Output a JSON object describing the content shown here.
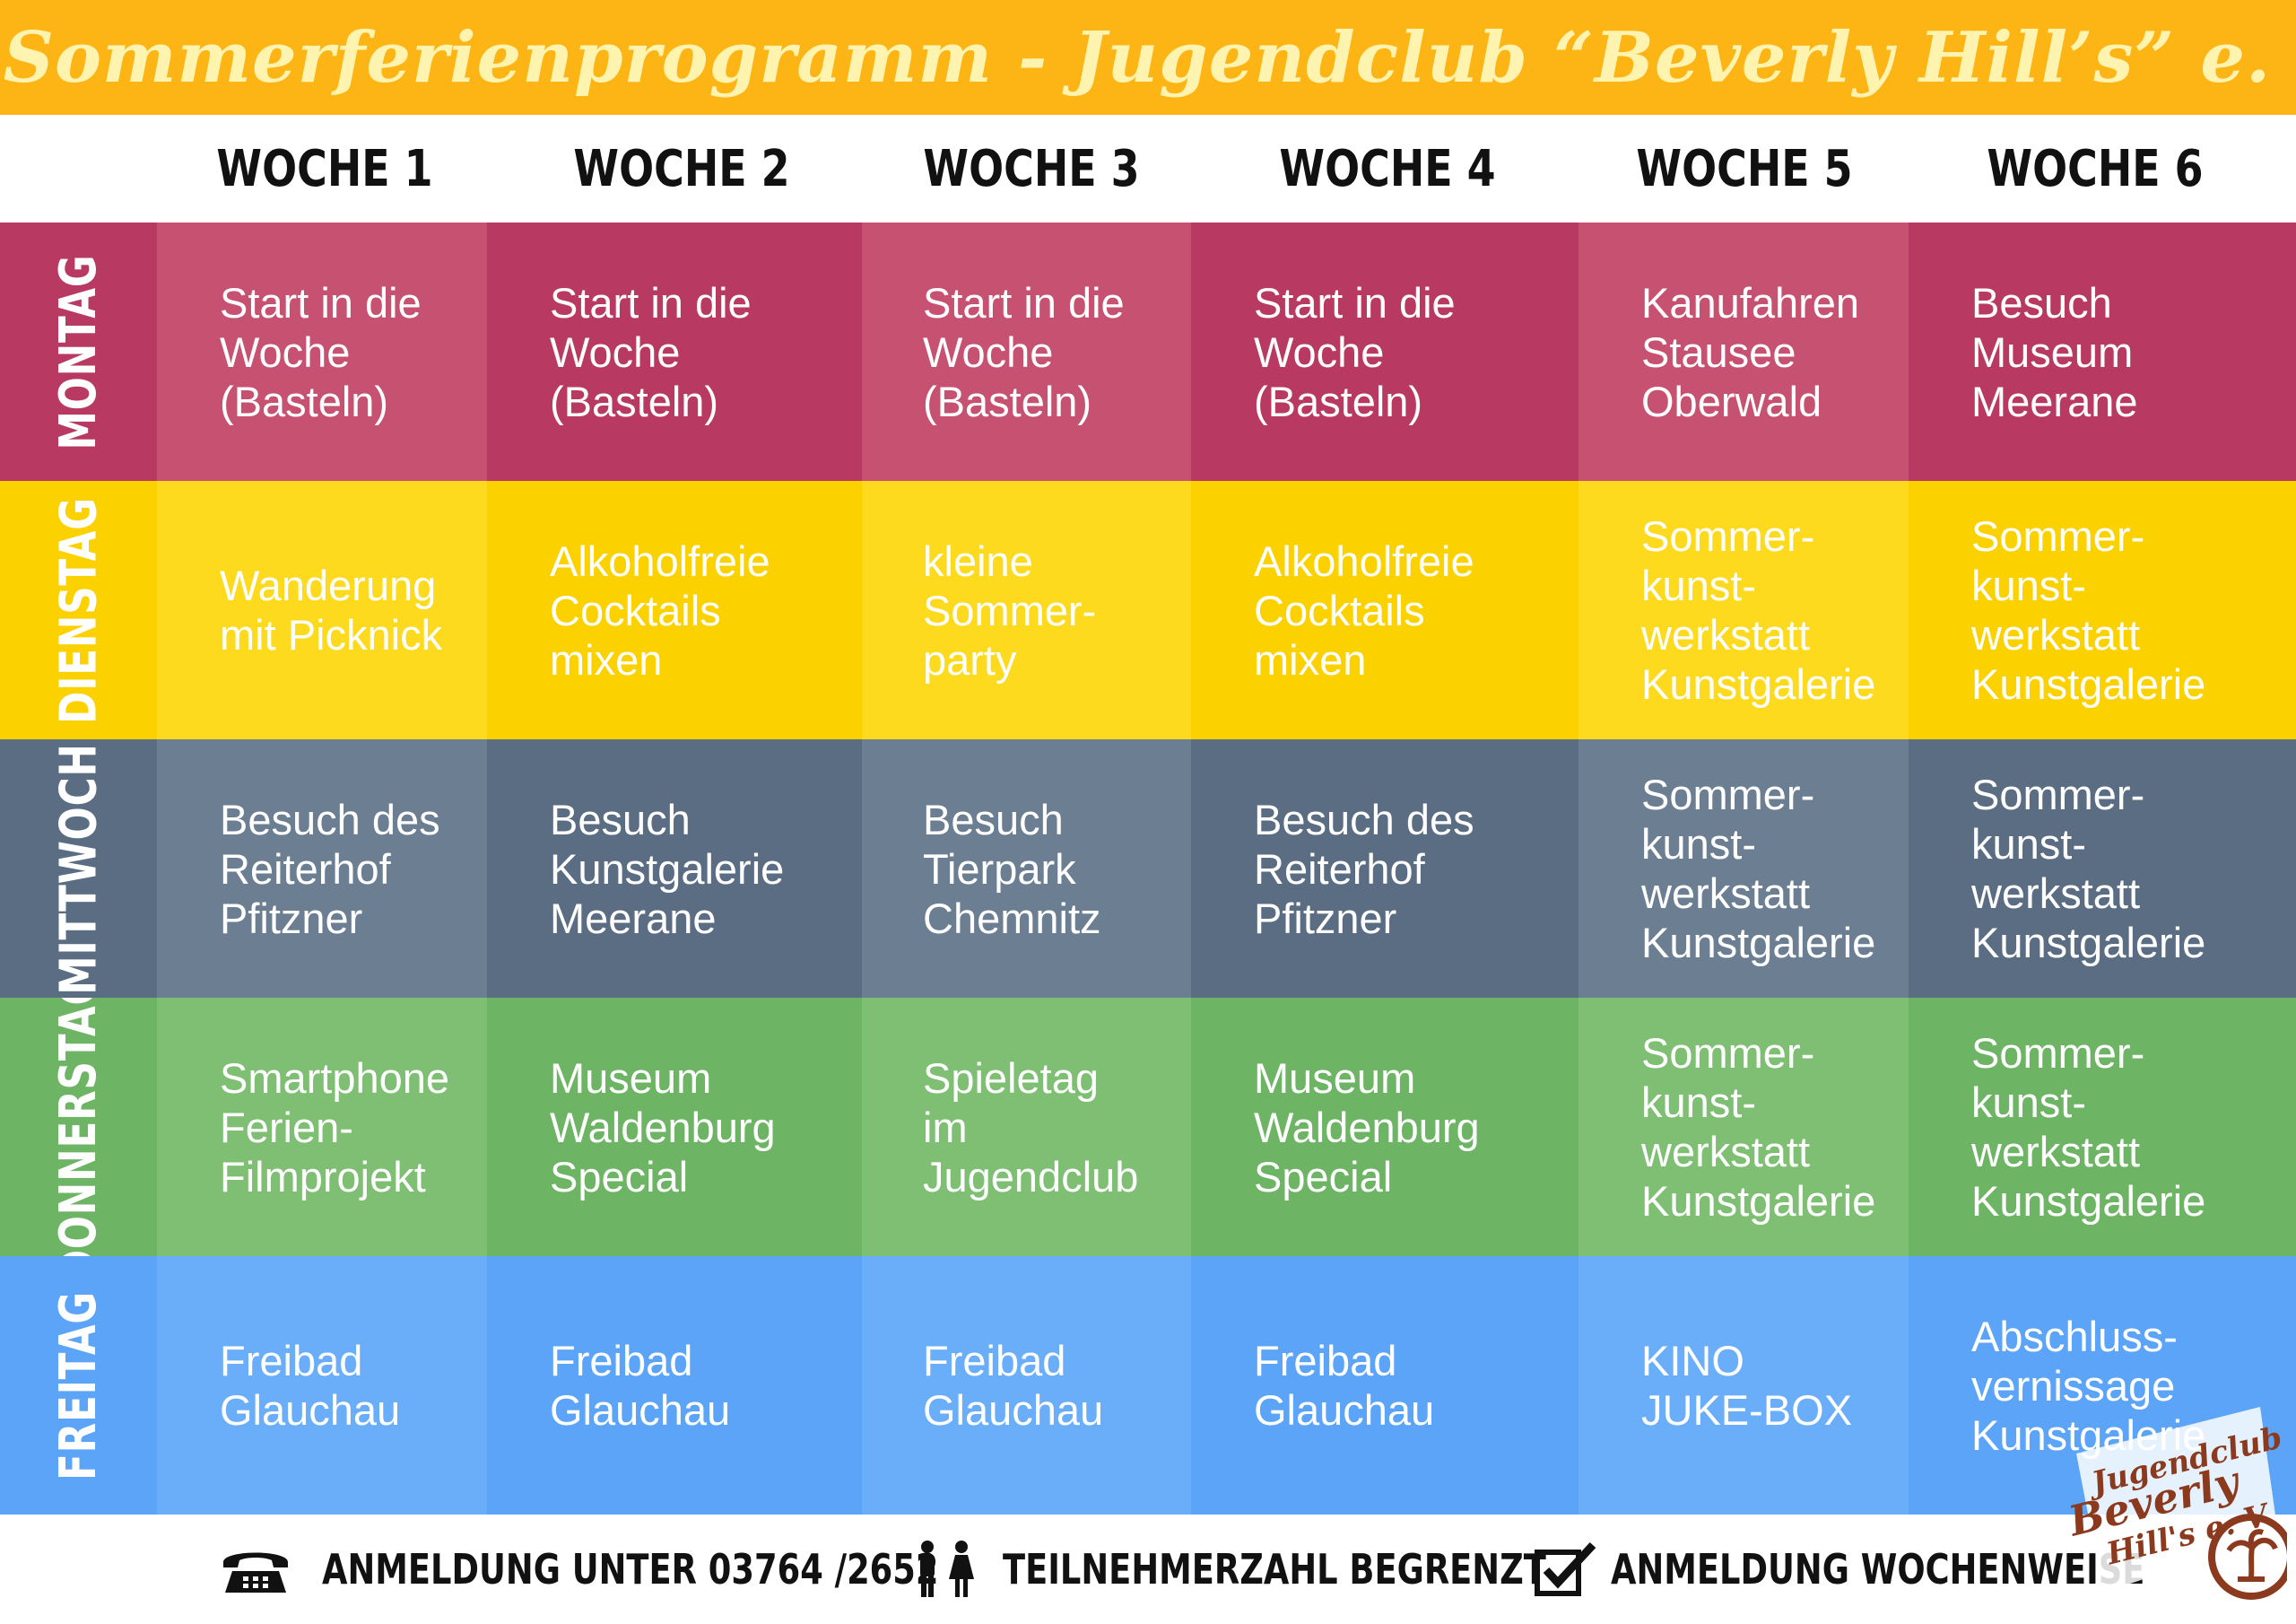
{
  "header": {
    "title": "Sommerferienprogramm - Jugendclub “Beverly Hill’s” e. V."
  },
  "weeks": [
    "WOCHE 1",
    "WOCHE 2",
    "WOCHE 3",
    "WOCHE 4",
    "WOCHE 5",
    "WOCHE 6"
  ],
  "rows": [
    {
      "day": "MONTAG",
      "color_light": "#C65170",
      "color_dark": "#B83A62",
      "cells": [
        "Start in die\nWoche\n(Basteln)",
        "Start in die\nWoche\n(Basteln)",
        "Start in die\nWoche\n(Basteln)",
        "Start in die\nWoche\n(Basteln)",
        "Kanufahren\nStausee\nOberwald",
        "Besuch\nMuseum\nMeerane"
      ]
    },
    {
      "day": "DIENSTAG",
      "color_light": "#FDDA1E",
      "color_dark": "#FBD100",
      "cells": [
        "Wanderung\nmit Picknick",
        "Alkoholfreie\nCocktails\nmixen",
        "kleine\nSommer-\nparty",
        "Alkoholfreie\nCocktails\nmixen",
        "Sommer-\nkunst-\nwerkstatt\nKunstgalerie",
        "Sommer-\nkunst-\nwerkstatt\nKunstgalerie"
      ]
    },
    {
      "day": "MITTWOCH",
      "color_light": "#6B7E92",
      "color_dark": "#5A6D82",
      "cells": [
        "Besuch des\nReiterhof\nPfitzner",
        "Besuch\nKunstgalerie\nMeerane",
        "Besuch\nTierpark\nChemnitz",
        "Besuch des\nReiterhof\nPfitzner",
        "Sommer-\nkunst-\nwerkstatt\nKunstgalerie",
        "Sommer-\nkunst-\nwerkstatt\nKunstgalerie"
      ]
    },
    {
      "day": "DONNERSTAG",
      "color_light": "#7EBF74",
      "color_dark": "#6DB465",
      "cells": [
        "Smartphone\nFerien-\nFilmprojekt",
        "Museum\nWaldenburg\nSpecial",
        "Spieletag\nim\nJugendclub",
        "Museum\nWaldenburg\nSpecial",
        "Sommer-\nkunst-\nwerkstatt\nKunstgalerie",
        "Sommer-\nkunst-\nwerkstatt\nKunstgalerie"
      ]
    },
    {
      "day": "FREITAG",
      "color_light": "#6AAEF9",
      "color_dark": "#5BA4F8",
      "cells": [
        "Freibad\nGlauchau",
        "Freibad\nGlauchau",
        "Freibad\nGlauchau",
        "Freibad\nGlauchau",
        "KINO\nJUKE-BOX",
        "Abschluss-\nvernissage\nKunstgalerie"
      ]
    }
  ],
  "footer": {
    "phone_text": "ANMELDUNG UNTER 03764 /2652",
    "participants_text": "TEILNEHMERZAHL BEGRENZT",
    "weekly_text": "ANMELDUNG WOCHENWEISE"
  },
  "logo": {
    "line1": "Jugendclub",
    "line2": "Beverly",
    "line3": "Hill's e. V."
  },
  "colors": {
    "header_bg": "#FDB515",
    "title_color": "#FFF3B0",
    "logo_brown": "#8B3A1E"
  }
}
